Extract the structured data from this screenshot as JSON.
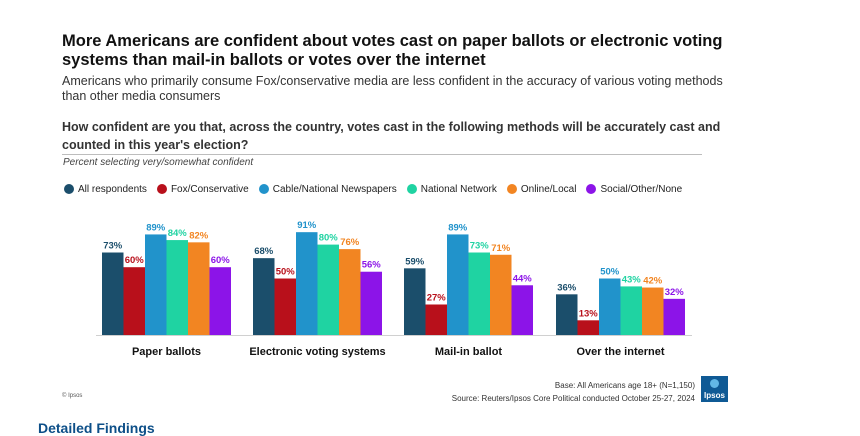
{
  "header": {
    "title": "More Americans are confident about votes cast on paper ballots or electronic voting systems than mail-in ballots or votes over the internet",
    "subtitle": "Americans who primarily consume Fox/conservative media are less confident in the accuracy of various voting methods than other media consumers",
    "question": "How confident are you that, across the country, votes cast in the following methods will be accurately cast and counted in this year's election?",
    "note": "Percent selecting very/somewhat confident"
  },
  "colors": {
    "All respondents": "#1b4e6b",
    "Fox/Conservative": "#b8101b",
    "Cable/National Newspapers": "#2193cb",
    "National Network": "#1fd3a2",
    "Online/Local": "#f28522",
    "Social/Other/None": "#8c14e8"
  },
  "chart_data": {
    "type": "bar",
    "categories": [
      "Paper ballots",
      "Electronic voting systems",
      "Mail-in ballot",
      "Over the internet"
    ],
    "series": [
      {
        "name": "All respondents",
        "values": [
          73,
          68,
          59,
          36
        ]
      },
      {
        "name": "Fox/Conservative",
        "values": [
          60,
          50,
          27,
          13
        ]
      },
      {
        "name": "Cable/National Newspapers",
        "values": [
          89,
          91,
          89,
          50
        ]
      },
      {
        "name": "National Network",
        "values": [
          84,
          80,
          73,
          43
        ]
      },
      {
        "name": "Online/Local",
        "values": [
          82,
          76,
          71,
          42
        ]
      },
      {
        "name": "Social/Other/None",
        "values": [
          60,
          56,
          44,
          32
        ]
      }
    ],
    "value_suffix": "%",
    "ylim": [
      0,
      100
    ],
    "grid": false,
    "legend_position": "top"
  },
  "footer": {
    "base": "Base: All Americans age 18+ (N=1,150)",
    "source": "Source: Reuters/Ipsos Core Political conducted October 25-27, 2024",
    "copyright": "© Ipsos",
    "logo_text": "Ipsos",
    "next_heading": "Detailed Findings"
  }
}
